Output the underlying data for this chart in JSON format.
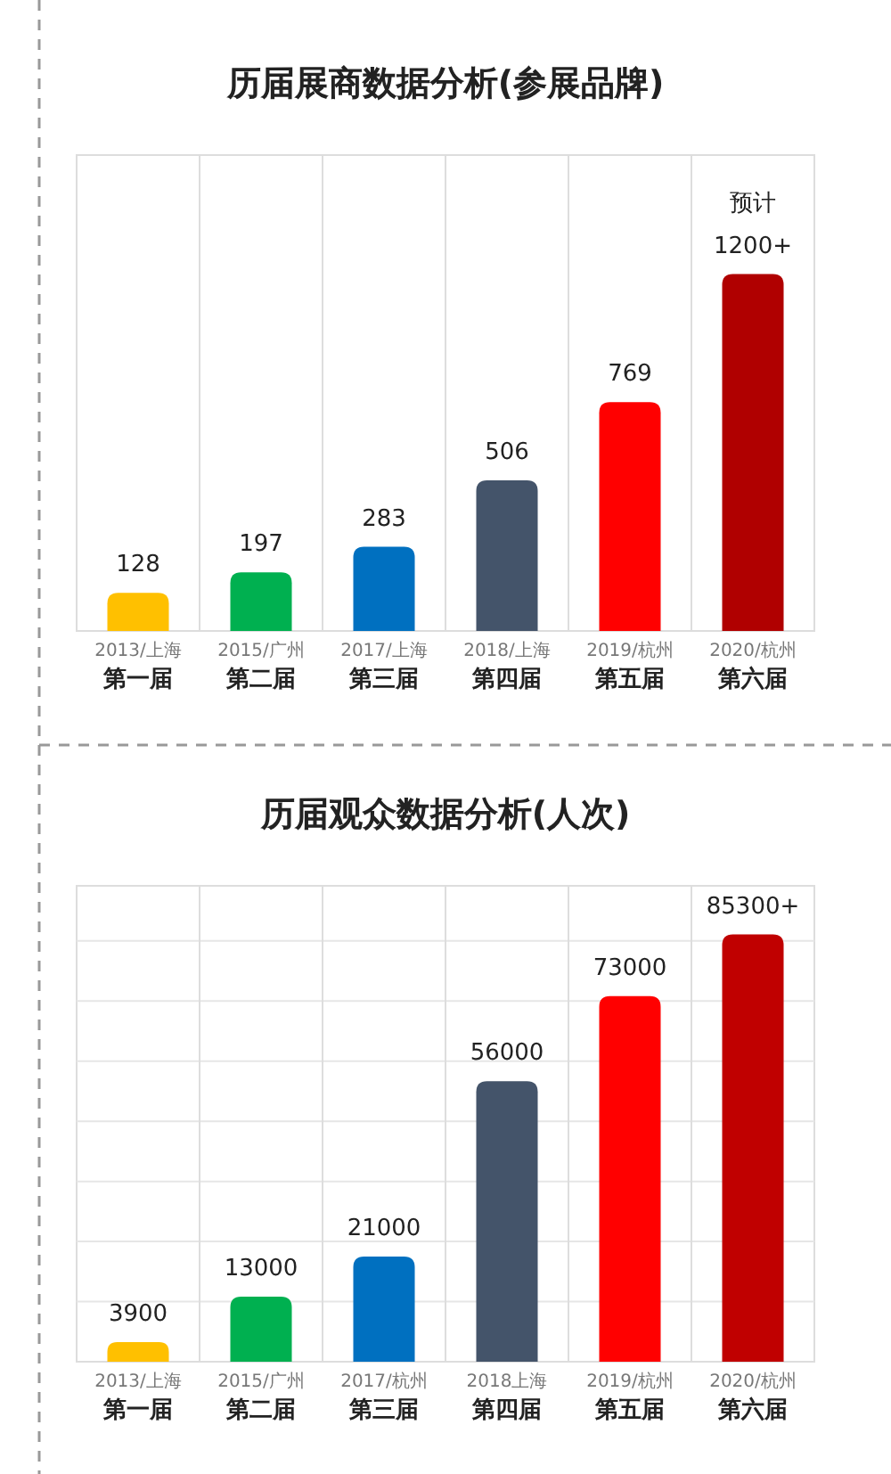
{
  "chart_data": [
    {
      "type": "bar",
      "title": "历届展商数据分析(参展品牌)",
      "categories": [
        "2013/上海第一届",
        "2015/广州第二届",
        "2017/上海第三届",
        "2018/上海第四届",
        "2019/杭州第五届",
        "2020/杭州第六届"
      ],
      "values": [
        128,
        197,
        283,
        506,
        769,
        1200
      ],
      "colors": [
        "#ffc000",
        "#00b050",
        "#0070c0",
        "#44546a",
        "#ff0000",
        "#b00000"
      ],
      "value_labels": [
        "128",
        "197",
        "283",
        "506",
        "769",
        "预计\n1200+"
      ],
      "ylim": [
        0,
        1600
      ],
      "grid": "x"
    },
    {
      "type": "bar",
      "title": "历届观众数据分析(人次)",
      "categories": [
        "2013/上海第一届",
        "2015/广州第二届",
        "2017/杭州第三届",
        "2018上海第四届",
        "2019/杭州第五届",
        "2020/杭州第六届"
      ],
      "values": [
        3900,
        13000,
        21000,
        56000,
        73000,
        85300
      ],
      "colors": [
        "#ffc000",
        "#00b050",
        "#0070c0",
        "#44546a",
        "#ff0000",
        "#c00000"
      ],
      "value_labels": [
        "3900",
        "13000",
        "21000",
        "56000",
        "73000",
        "85300+"
      ],
      "ylim": [
        0,
        95000
      ],
      "yticks": [
        {
          "value": 12000,
          "label": null
        },
        {
          "value": 24000,
          "label": null
        },
        {
          "value": 36000,
          "label": null
        },
        {
          "value": 48000,
          "label": null
        },
        {
          "value": 60000,
          "label": null
        },
        {
          "value": 72000,
          "label": null
        },
        {
          "value": 84000,
          "label": null
        }
      ],
      "grid": true
    }
  ]
}
